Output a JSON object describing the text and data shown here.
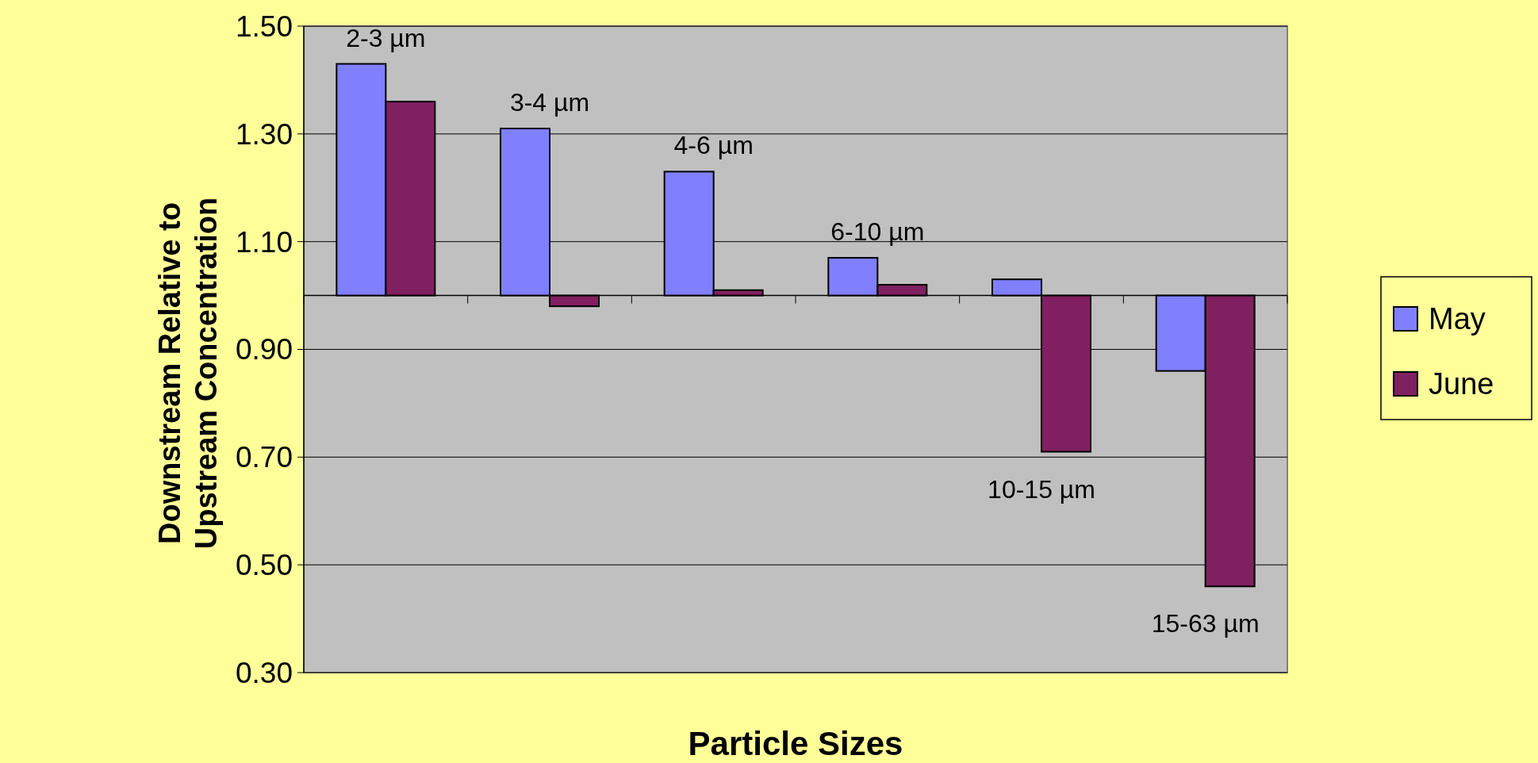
{
  "chart_data": {
    "type": "bar",
    "xlabel": "Particle Sizes",
    "ylabel": "Downstream Relative to Upstream Concentration",
    "categories": [
      "2-3 µm",
      "3-4 µm",
      "4-6 µm",
      "6-10 µm",
      "10-15 µm",
      "15-63 µm"
    ],
    "series": [
      {
        "name": "May",
        "color": "#8080ff",
        "base": [
          1,
          1,
          1,
          1,
          1,
          1
        ],
        "values": [
          0.43,
          0.31,
          0.23,
          0.07,
          0.03,
          -0.14
        ]
      },
      {
        "name": "June",
        "color": "#802060",
        "base": [
          1,
          1,
          1,
          1,
          1,
          1
        ],
        "values": [
          0.36,
          -0.02,
          0.01,
          0.02,
          -0.29,
          -0.54
        ]
      }
    ],
    "ref_lines": [
      {
        "axis": "y",
        "value": 1,
        "color": "#000000"
      }
    ],
    "ylim": [
      0.3,
      1.5
    ],
    "yticks": [
      {
        "value": 0.3,
        "label": "0.30"
      },
      {
        "value": 0.5,
        "label": "0.50"
      },
      {
        "value": 0.7,
        "label": "0.70"
      },
      {
        "value": 0.9,
        "label": "0.90"
      },
      {
        "value": 1.1,
        "label": "1.10"
      },
      {
        "value": 1.3,
        "label": "1.30"
      },
      {
        "value": 1.5,
        "label": "1.50"
      }
    ],
    "grid": "y",
    "legend": "right"
  }
}
